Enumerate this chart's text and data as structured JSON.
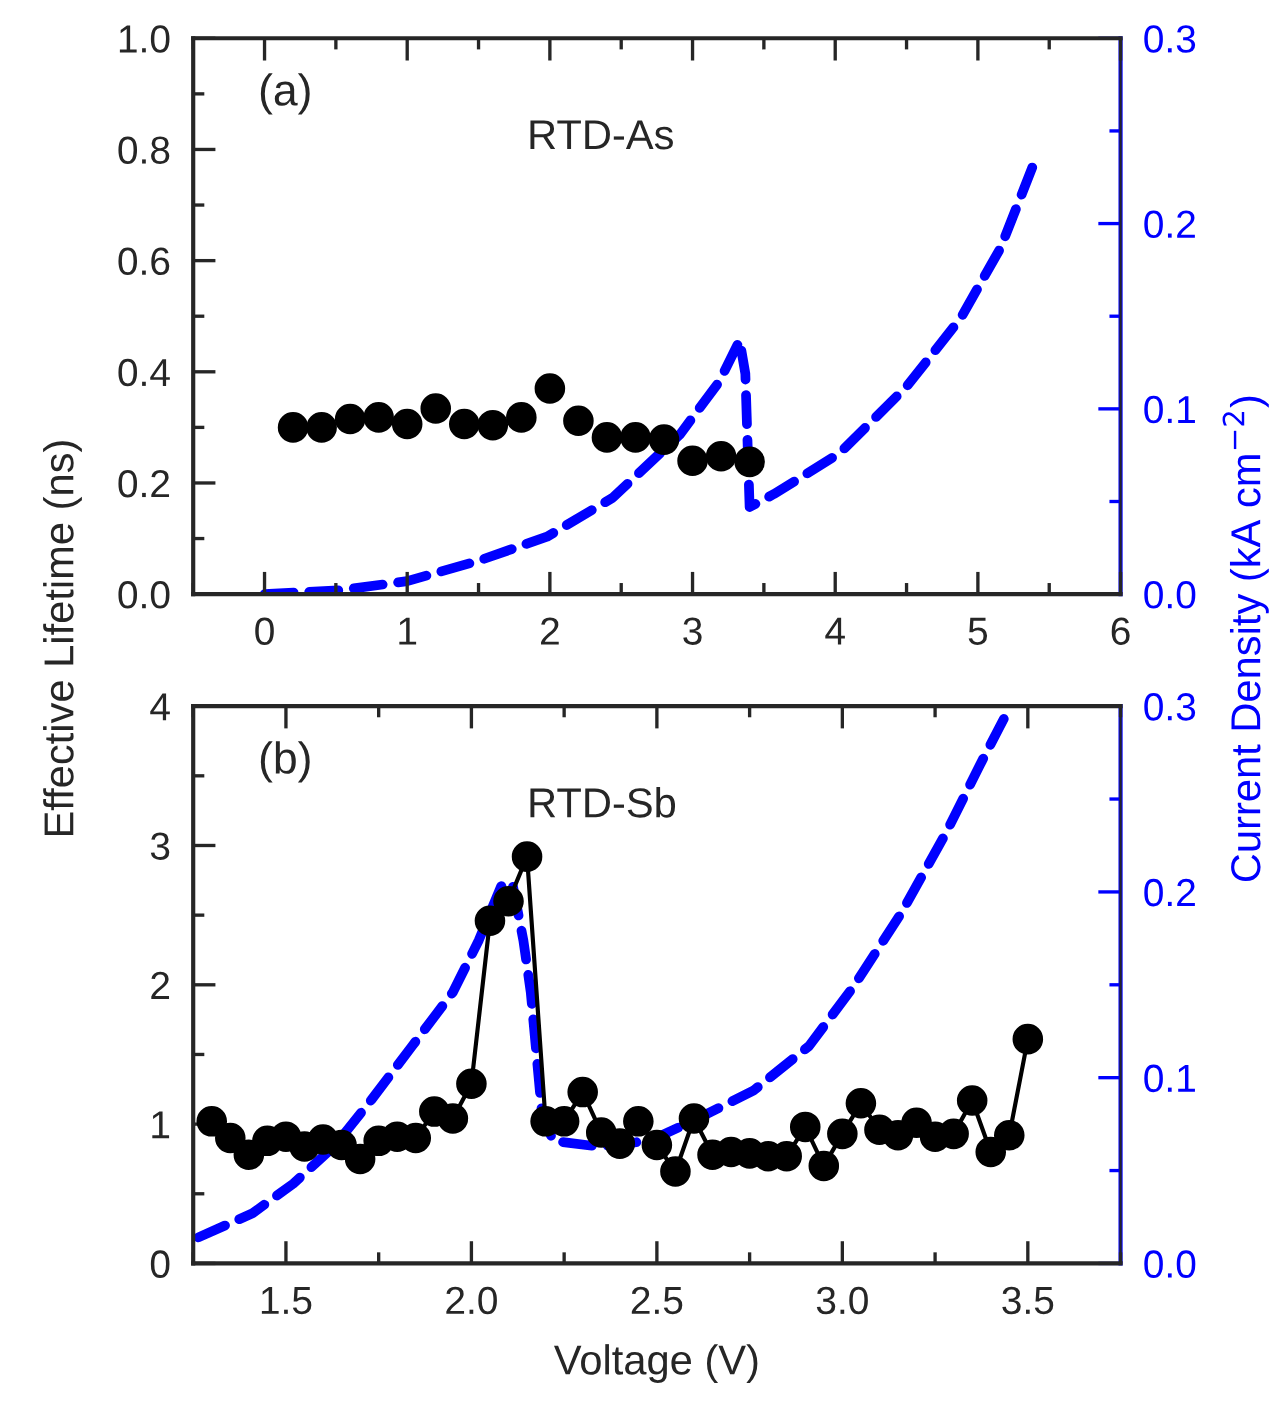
{
  "chart_data": [
    {
      "type": "line",
      "ylabel": "Effective Lifetime (ns)",
      "y2label": "Current Density (kA cm$^{−2}$)",
      "annotations": [
        "(a)",
        "RTD-As"
      ],
      "xlim": [
        -0.5,
        6
      ],
      "xticks": [
        0,
        1,
        2,
        3,
        4,
        5,
        6
      ],
      "ylim": [
        0,
        1.0
      ],
      "yticks": [
        {
          "value": 0,
          "label": "0.0"
        },
        0.2,
        0.4,
        0.6,
        0.8,
        {
          "value": 1.0,
          "label": "1.0"
        }
      ],
      "y2lim": [
        0,
        0.3
      ],
      "y2ticks": [
        {
          "value": 0,
          "label": "0.0"
        },
        0.1,
        0.2,
        0.3
      ],
      "grid": false,
      "legend": false,
      "series": [
        {
          "type": "scatter",
          "color": "#000000",
          "marker": "circle",
          "x": [
            0.2,
            0.4,
            0.6,
            0.8,
            1.0,
            1.2,
            1.4,
            1.6,
            1.8,
            2.0,
            2.2,
            2.4,
            2.6,
            2.8,
            3.0,
            3.2,
            3.4
          ],
          "values": [
            0.3,
            0.3,
            0.315,
            0.318,
            0.306,
            0.334,
            0.306,
            0.304,
            0.318,
            0.37,
            0.312,
            0.282,
            0.282,
            0.278,
            0.24,
            0.248,
            0.238
          ]
        },
        {
          "color": "#0000ff",
          "marker": "none",
          "line_style": "dashed",
          "axis": "y2",
          "x": [
            0,
            0.52,
            1.0,
            1.5,
            1.98,
            2.44,
            2.91,
            3.19,
            3.33,
            3.37,
            3.4,
            3.57,
            4.03,
            4.5,
            4.88,
            5.16,
            5.39
          ],
          "values": [
            0,
            0.002,
            0.007,
            0.018,
            0.031,
            0.052,
            0.086,
            0.115,
            0.137,
            0.119,
            0.047,
            0.054,
            0.076,
            0.112,
            0.149,
            0.187,
            0.232
          ]
        }
      ]
    },
    {
      "type": "line",
      "xlabel": "Voltage (V)",
      "annotations": [
        "(b)",
        "RTD-Sb"
      ],
      "xlim": [
        1.25,
        3.75
      ],
      "xticks": [
        1.5,
        {
          "value": 2.0,
          "label": "2.0"
        },
        2.5,
        {
          "value": 3.0,
          "label": "3.0"
        },
        3.5
      ],
      "ylim": [
        0,
        4
      ],
      "yticks": [
        0,
        1,
        2,
        3,
        4
      ],
      "y2lim": [
        0,
        0.3
      ],
      "y2ticks": [
        {
          "value": 0,
          "label": "0.0"
        },
        0.1,
        0.2,
        0.3
      ],
      "grid": false,
      "legend": false,
      "series": [
        {
          "color": "#000000",
          "marker": "circle",
          "line_style": "solid",
          "x": [
            1.3,
            1.35,
            1.4,
            1.45,
            1.5,
            1.55,
            1.6,
            1.65,
            1.7,
            1.75,
            1.8,
            1.85,
            1.9,
            1.95,
            2.0,
            2.05,
            2.1,
            2.15,
            2.2,
            2.25,
            2.3,
            2.35,
            2.4,
            2.45,
            2.5,
            2.55,
            2.6,
            2.65,
            2.7,
            2.75,
            2.8,
            2.85,
            2.9,
            2.95,
            3.0,
            3.05,
            3.1,
            3.15,
            3.2,
            3.25,
            3.3,
            3.35,
            3.4,
            3.45,
            3.5
          ],
          "values": [
            1.02,
            0.9,
            0.78,
            0.88,
            0.91,
            0.84,
            0.89,
            0.85,
            0.75,
            0.88,
            0.91,
            0.9,
            1.09,
            1.04,
            1.29,
            2.46,
            2.6,
            2.92,
            1.02,
            1.02,
            1.23,
            0.94,
            0.86,
            1.02,
            0.85,
            0.66,
            1.04,
            0.78,
            0.8,
            0.79,
            0.77,
            0.77,
            0.98,
            0.7,
            0.93,
            1.15,
            0.96,
            0.92,
            1.01,
            0.91,
            0.93,
            1.17,
            0.8,
            0.92,
            1.61
          ]
        },
        {
          "color": "#0000ff",
          "marker": "none",
          "line_style": "dashed",
          "axis": "y2",
          "x": [
            1.264,
            1.41,
            1.52,
            1.63,
            1.73,
            1.84,
            1.95,
            2.02,
            2.08,
            2.11,
            2.14,
            2.16,
            2.19,
            2.22,
            2.34,
            2.48,
            2.6,
            2.76,
            2.91,
            3.03,
            3.16,
            3.28,
            3.37,
            3.44
          ],
          "values": [
            0.014,
            0.027,
            0.043,
            0.063,
            0.088,
            0.117,
            0.146,
            0.174,
            0.203,
            0.205,
            0.174,
            0.146,
            0.081,
            0.066,
            0.063,
            0.066,
            0.077,
            0.093,
            0.117,
            0.149,
            0.189,
            0.232,
            0.268,
            0.295
          ]
        }
      ]
    }
  ]
}
